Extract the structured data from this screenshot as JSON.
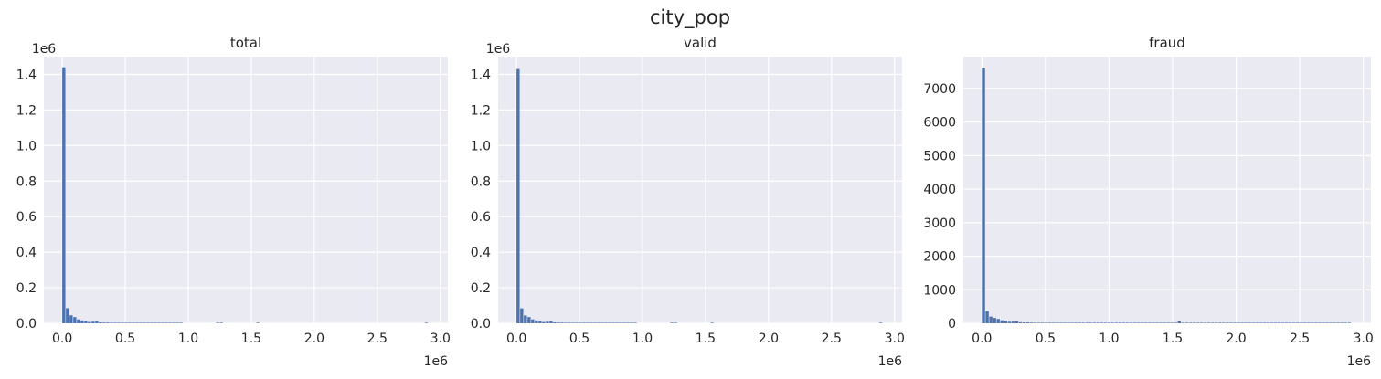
{
  "figure": {
    "suptitle": "city_pop"
  },
  "chart_data": [
    {
      "type": "histogram",
      "title": "total",
      "xlabel": "",
      "ylabel": "",
      "x_offset_text": "1e6",
      "y_offset_text": "1e6",
      "xlim": [
        -0.146,
        3.06
      ],
      "ylim": [
        0,
        1.5
      ],
      "xticks": [
        0.0,
        0.5,
        1.0,
        1.5,
        2.0,
        2.5,
        3.0
      ],
      "xtick_labels": [
        "0.0",
        "0.5",
        "1.0",
        "1.5",
        "2.0",
        "2.5",
        "3.0"
      ],
      "yticks": [
        0.0,
        0.2,
        0.4,
        0.6,
        0.8,
        1.0,
        1.2,
        1.4
      ],
      "ytick_labels": [
        "0.0",
        "0.2",
        "0.4",
        "0.6",
        "0.8",
        "1.0",
        "1.2",
        "1.4"
      ],
      "grid": true,
      "bin_range": [
        0,
        2.906
      ],
      "bins": 100,
      "values": [
        1.44,
        0.085,
        0.045,
        0.035,
        0.022,
        0.016,
        0.01,
        0.007,
        0.009,
        0.01,
        0.005,
        0.004,
        0.004,
        0.003,
        0.002,
        0.002,
        0.002,
        0.002,
        0.001,
        0.001,
        0.002,
        0.001,
        0.001,
        0.001,
        0.003,
        0.001,
        0.001,
        0.001,
        0.001,
        0.001,
        0.001,
        0.001,
        0.001,
        0.0,
        0.0,
        0.0,
        0.0,
        0.0,
        0.0,
        0.0,
        0.0,
        0.0,
        0.001,
        0.001,
        0.0,
        0.0,
        0.0,
        0.0,
        0.0,
        0.0,
        0.0,
        0.0,
        0.0,
        0.003,
        0.0,
        0.0,
        0.0,
        0.0,
        0.0,
        0.0,
        0.0,
        0.0,
        0.0,
        0.0,
        0.0,
        0.0,
        0.0,
        0.0,
        0.0,
        0.0,
        0.0,
        0.0,
        0.0,
        0.0,
        0.0,
        0.0,
        0.0,
        0.0,
        0.0,
        0.0,
        0.0,
        0.0,
        0.0,
        0.0,
        0.0,
        0.0,
        0.0,
        0.0,
        0.0,
        0.0,
        0.0,
        0.0,
        0.0,
        0.0,
        0.0,
        0.0,
        0.0,
        0.0,
        0.0,
        0.001
      ]
    },
    {
      "type": "histogram",
      "title": "valid",
      "xlabel": "",
      "ylabel": "",
      "x_offset_text": "1e6",
      "y_offset_text": "1e6",
      "xlim": [
        -0.146,
        3.06
      ],
      "ylim": [
        0,
        1.5
      ],
      "xticks": [
        0.0,
        0.5,
        1.0,
        1.5,
        2.0,
        2.5,
        3.0
      ],
      "xtick_labels": [
        "0.0",
        "0.5",
        "1.0",
        "1.5",
        "2.0",
        "2.5",
        "3.0"
      ],
      "yticks": [
        0.0,
        0.2,
        0.4,
        0.6,
        0.8,
        1.0,
        1.2,
        1.4
      ],
      "ytick_labels": [
        "0.0",
        "0.2",
        "0.4",
        "0.6",
        "0.8",
        "1.0",
        "1.2",
        "1.4"
      ],
      "grid": true,
      "bin_range": [
        0,
        2.906
      ],
      "bins": 100,
      "values": [
        1.43,
        0.084,
        0.044,
        0.035,
        0.022,
        0.016,
        0.01,
        0.007,
        0.009,
        0.01,
        0.005,
        0.004,
        0.004,
        0.003,
        0.002,
        0.002,
        0.002,
        0.002,
        0.001,
        0.001,
        0.002,
        0.001,
        0.001,
        0.001,
        0.003,
        0.001,
        0.001,
        0.001,
        0.001,
        0.001,
        0.001,
        0.001,
        0.001,
        0.0,
        0.0,
        0.0,
        0.0,
        0.0,
        0.0,
        0.0,
        0.0,
        0.0,
        0.001,
        0.001,
        0.0,
        0.0,
        0.0,
        0.0,
        0.0,
        0.0,
        0.0,
        0.0,
        0.0,
        0.003,
        0.0,
        0.0,
        0.0,
        0.0,
        0.0,
        0.0,
        0.0,
        0.0,
        0.0,
        0.0,
        0.0,
        0.0,
        0.0,
        0.0,
        0.0,
        0.0,
        0.0,
        0.0,
        0.0,
        0.0,
        0.0,
        0.0,
        0.0,
        0.0,
        0.0,
        0.0,
        0.0,
        0.0,
        0.0,
        0.0,
        0.0,
        0.0,
        0.0,
        0.0,
        0.0,
        0.0,
        0.0,
        0.0,
        0.0,
        0.0,
        0.0,
        0.0,
        0.0,
        0.0,
        0.0,
        0.001
      ]
    },
    {
      "type": "histogram",
      "title": "fraud",
      "xlabel": "",
      "ylabel": "",
      "x_offset_text": "1e6",
      "y_offset_text": "",
      "xlim": [
        -0.146,
        3.06
      ],
      "ylim": [
        0,
        7950
      ],
      "xticks": [
        0.0,
        0.5,
        1.0,
        1.5,
        2.0,
        2.5,
        3.0
      ],
      "xtick_labels": [
        "0.0",
        "0.5",
        "1.0",
        "1.5",
        "2.0",
        "2.5",
        "3.0"
      ],
      "yticks": [
        0,
        1000,
        2000,
        3000,
        4000,
        5000,
        6000,
        7000
      ],
      "ytick_labels": [
        "0",
        "1000",
        "2000",
        "3000",
        "4000",
        "5000",
        "6000",
        "7000"
      ],
      "grid": true,
      "bin_range": [
        0,
        2.906
      ],
      "bins": 100,
      "values": [
        7600,
        360,
        200,
        160,
        130,
        90,
        70,
        45,
        50,
        55,
        30,
        25,
        25,
        20,
        15,
        15,
        12,
        12,
        8,
        8,
        12,
        6,
        6,
        6,
        15,
        6,
        6,
        6,
        6,
        6,
        6,
        6,
        6,
        2,
        2,
        2,
        2,
        2,
        2,
        2,
        2,
        2,
        6,
        6,
        2,
        2,
        2,
        2,
        2,
        2,
        2,
        2,
        2,
        55,
        2,
        2,
        2,
        2,
        2,
        2,
        2,
        2,
        2,
        2,
        2,
        2,
        2,
        2,
        2,
        2,
        2,
        2,
        2,
        2,
        2,
        2,
        2,
        2,
        2,
        2,
        2,
        2,
        2,
        2,
        2,
        2,
        2,
        2,
        2,
        2,
        2,
        2,
        2,
        2,
        2,
        2,
        2,
        2,
        2,
        6
      ]
    }
  ],
  "colors": {
    "bar": "#4c72b0",
    "axes_bg": "#eaeaf2",
    "grid": "#ffffff",
    "text": "#262626"
  }
}
